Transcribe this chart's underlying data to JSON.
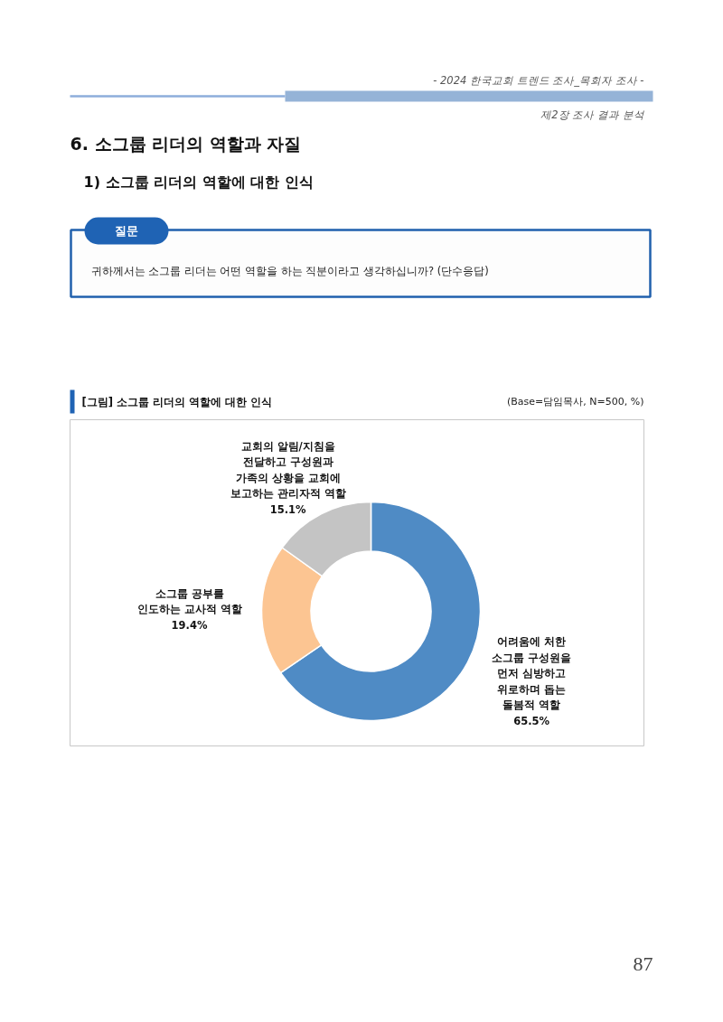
{
  "chart_data": {
    "type": "donut",
    "title": "[그림] 소그룹 리더의 역할에 대한 인식",
    "subtitle": "(Base=담임목사, N=500, %)",
    "categories": [
      "어려움에 처한\n소그룹 구성원을\n먼저 심방하고\n위로하며 돕는\n돌봄적 역할",
      "소그룹 공부를\n인도하는 교사적 역할",
      "교회의 알림/지침을\n전달하고 구성원과\n가족의 상황을 교회에\n보고하는 관리자적 역할"
    ],
    "values": [
      65.5,
      19.4,
      15.1
    ],
    "value_labels": [
      "65.5%",
      "19.4%",
      "15.1%"
    ],
    "colors": [
      "#4f8bc5",
      "#fcc592",
      "#c4c4c4"
    ],
    "annotations": [
      "- 2024 한국교회 트렌드 조사_목회자 조사 -",
      "제2장 조사 결과 분석",
      "6. 소그룹 리더의 역할과 자질",
      "1) 소그룹 리더의 역할에 대한 인식",
      "질문",
      "귀하께서는 소그룹 리더는 어떤 역할을 하는 직분이라고 생각하십니까? (단수응답)",
      "87"
    ]
  }
}
